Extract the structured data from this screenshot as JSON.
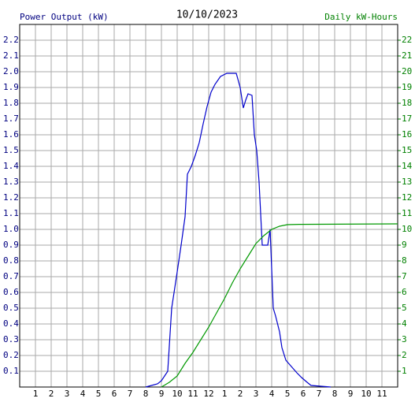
{
  "chart_data": {
    "type": "line",
    "title": "10/10/2023",
    "ylabel": "Power Output (kW)",
    "y2label": "Daily kW-Hours",
    "xlim": [
      0,
      24
    ],
    "xticks": [
      1,
      2,
      3,
      4,
      5,
      6,
      7,
      8,
      9,
      10,
      11,
      12,
      {
        "value": 13,
        "label": "1"
      },
      {
        "value": 14,
        "label": "2"
      },
      {
        "value": 15,
        "label": "3"
      },
      {
        "value": 16,
        "label": "4"
      },
      {
        "value": 17,
        "label": "5"
      },
      {
        "value": 18,
        "label": "6"
      },
      {
        "value": 19,
        "label": "7"
      },
      {
        "value": 20,
        "label": "8"
      },
      {
        "value": 21,
        "label": "9"
      },
      {
        "value": 22,
        "label": "10"
      },
      {
        "value": 23,
        "label": "11"
      }
    ],
    "ylim": [
      0,
      2.3
    ],
    "yticks": [
      0.1,
      0.2,
      0.3,
      0.4,
      0.5,
      0.6,
      0.7,
      0.8,
      0.9,
      {
        "value": 1,
        "label": "1.0"
      },
      1.1,
      1.2,
      1.3,
      1.4,
      1.5,
      1.6,
      1.7,
      1.8,
      1.9,
      {
        "value": 2,
        "label": "2.0"
      },
      2.1,
      2.2
    ],
    "y2lim": [
      0,
      23
    ],
    "y2ticks": [
      1,
      2,
      3,
      4,
      5,
      6,
      7,
      8,
      9,
      10,
      11,
      12,
      13,
      14,
      15,
      16,
      17,
      18,
      19,
      20,
      21,
      22
    ],
    "grid": true,
    "series": [
      {
        "color": "#0000cc",
        "axis": "y",
        "x": [
          8,
          8.75,
          9,
          9.4,
          9.65,
          10,
          10.25,
          10.5,
          10.65,
          10.9,
          11.15,
          11.4,
          11.65,
          11.9,
          12.15,
          12.4,
          12.75,
          13.15,
          13.75,
          14,
          14.2,
          14.35,
          14.5,
          14.75,
          14.9,
          15.05,
          15.2,
          15.4,
          15.75,
          15.9,
          16.1,
          16.25,
          16.5,
          16.65,
          16.9,
          17.25,
          17.6,
          17.9,
          18.25,
          18.5,
          19.75
        ],
        "values": [
          0,
          0.02,
          0.04,
          0.1,
          0.5,
          0.73,
          0.9,
          1.08,
          1.35,
          1.4,
          1.47,
          1.55,
          1.67,
          1.78,
          1.87,
          1.92,
          1.97,
          1.99,
          1.99,
          1.9,
          1.77,
          1.82,
          1.86,
          1.85,
          1.6,
          1.5,
          1.3,
          0.9,
          0.9,
          1.0,
          0.5,
          0.45,
          0.35,
          0.25,
          0.17,
          0.13,
          0.09,
          0.06,
          0.03,
          0.01,
          0
        ]
      },
      {
        "color": "#009900",
        "axis": "y2",
        "x": [
          9,
          9.5,
          10,
          10.5,
          11,
          11.5,
          12,
          12.5,
          13,
          13.5,
          14,
          14.5,
          15,
          15.5,
          16,
          16.5,
          17,
          17.75,
          24
        ],
        "values": [
          0,
          0.3,
          0.7,
          1.5,
          2.2,
          3,
          3.8,
          4.7,
          5.6,
          6.6,
          7.5,
          8.3,
          9.1,
          9.6,
          10,
          10.2,
          10.3,
          10.32,
          10.35
        ]
      }
    ]
  }
}
